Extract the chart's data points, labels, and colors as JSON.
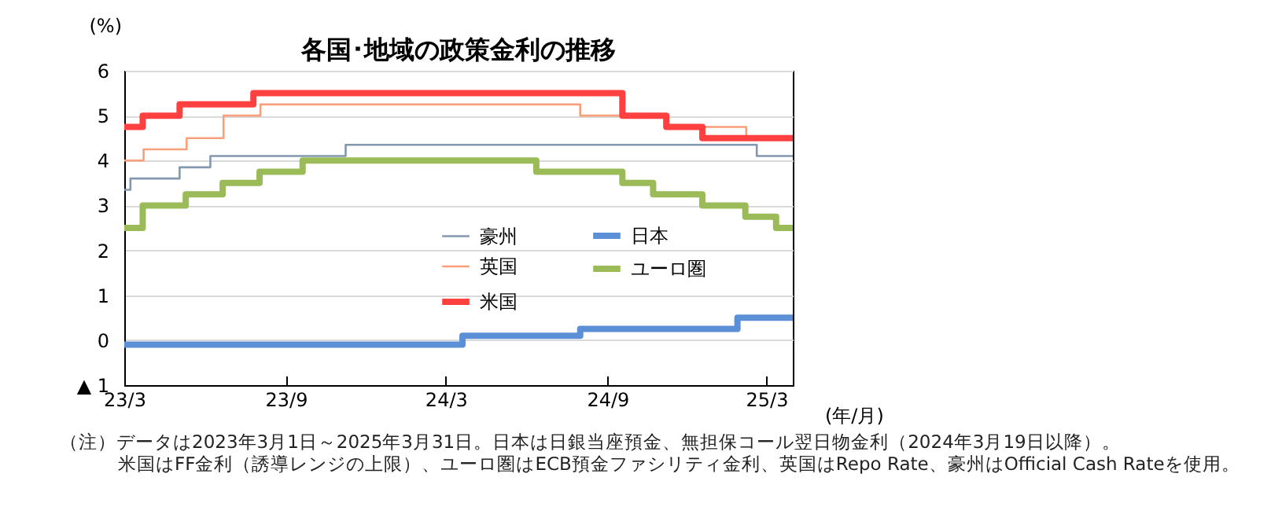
{
  "chart_data": {
    "type": "step",
    "title": "各国･地域の政策金利の推移",
    "ylabel": "(%)",
    "xlabel": "(年/月)",
    "xlim": [
      "2023-03-01",
      "2025-03-31"
    ],
    "xticks": [
      {
        "value": "2023-03-01",
        "label": "23/3"
      },
      {
        "value": "2023-09-01",
        "label": "23/9"
      },
      {
        "value": "2024-03-01",
        "label": "24/3"
      },
      {
        "value": "2024-09-01",
        "label": "24/9"
      },
      {
        "value": "2025-03-01",
        "label": "25/3"
      }
    ],
    "ylim": [
      -1,
      6
    ],
    "yticks": [
      {
        "value": -1,
        "label": "▲ 1"
      },
      0,
      1,
      2,
      3,
      4,
      5,
      6
    ],
    "grid": "y",
    "legend": "center",
    "series": [
      {
        "name": "豪州",
        "color": "#8497b0",
        "x": [
          "2023-03-01",
          "2023-03-08",
          "2023-05-03",
          "2023-06-07",
          "2023-11-08",
          "2025-02-18",
          "2025-03-31"
        ],
        "values": [
          3.35,
          3.6,
          3.85,
          4.1,
          4.35,
          4.1,
          4.1
        ]
      },
      {
        "name": "英国",
        "color": "#f8a07c",
        "x": [
          "2023-03-01",
          "2023-03-23",
          "2023-05-11",
          "2023-06-22",
          "2023-08-03",
          "2024-08-01",
          "2024-11-07",
          "2025-02-06",
          "2025-03-31"
        ],
        "values": [
          4.0,
          4.25,
          4.5,
          5.0,
          5.25,
          5.0,
          4.75,
          4.5,
          4.5
        ]
      },
      {
        "name": "米国",
        "color": "#ff4040",
        "x": [
          "2023-03-01",
          "2023-03-22",
          "2023-05-03",
          "2023-07-26",
          "2024-09-18",
          "2024-11-07",
          "2024-12-18",
          "2025-03-31"
        ],
        "values": [
          4.75,
          5.0,
          5.25,
          5.5,
          5.0,
          4.75,
          4.5,
          4.5
        ]
      },
      {
        "name": "日本",
        "color": "#5b8fd6",
        "x": [
          "2023-03-01",
          "2024-03-20",
          "2024-08-01",
          "2025-01-27",
          "2025-03-31"
        ],
        "values": [
          -0.1,
          0.1,
          0.25,
          0.5,
          0.5
        ]
      },
      {
        "name": "ユーロ圏",
        "color": "#9bbb59",
        "x": [
          "2023-03-01",
          "2023-03-22",
          "2023-05-10",
          "2023-06-21",
          "2023-08-02",
          "2023-09-20",
          "2024-06-12",
          "2024-09-18",
          "2024-10-23",
          "2024-12-18",
          "2025-02-05",
          "2025-03-12",
          "2025-03-31"
        ],
        "values": [
          2.5,
          3.0,
          3.25,
          3.5,
          3.75,
          4.0,
          3.75,
          3.5,
          3.25,
          3.0,
          2.75,
          2.5,
          2.5
        ]
      }
    ],
    "annotations": [
      "（注）データは2023年3月1日～2025年3月31日。日本は日銀当座預金、無担保コール翌日物金利（2024年3月19日以降）。",
      "米国はFF金利（誘導レンジの上限）、ユーロ圏はECB預金ファシリティ金利、英国はRepo Rate、豪州はOfficial Cash Rateを使用。"
    ]
  }
}
